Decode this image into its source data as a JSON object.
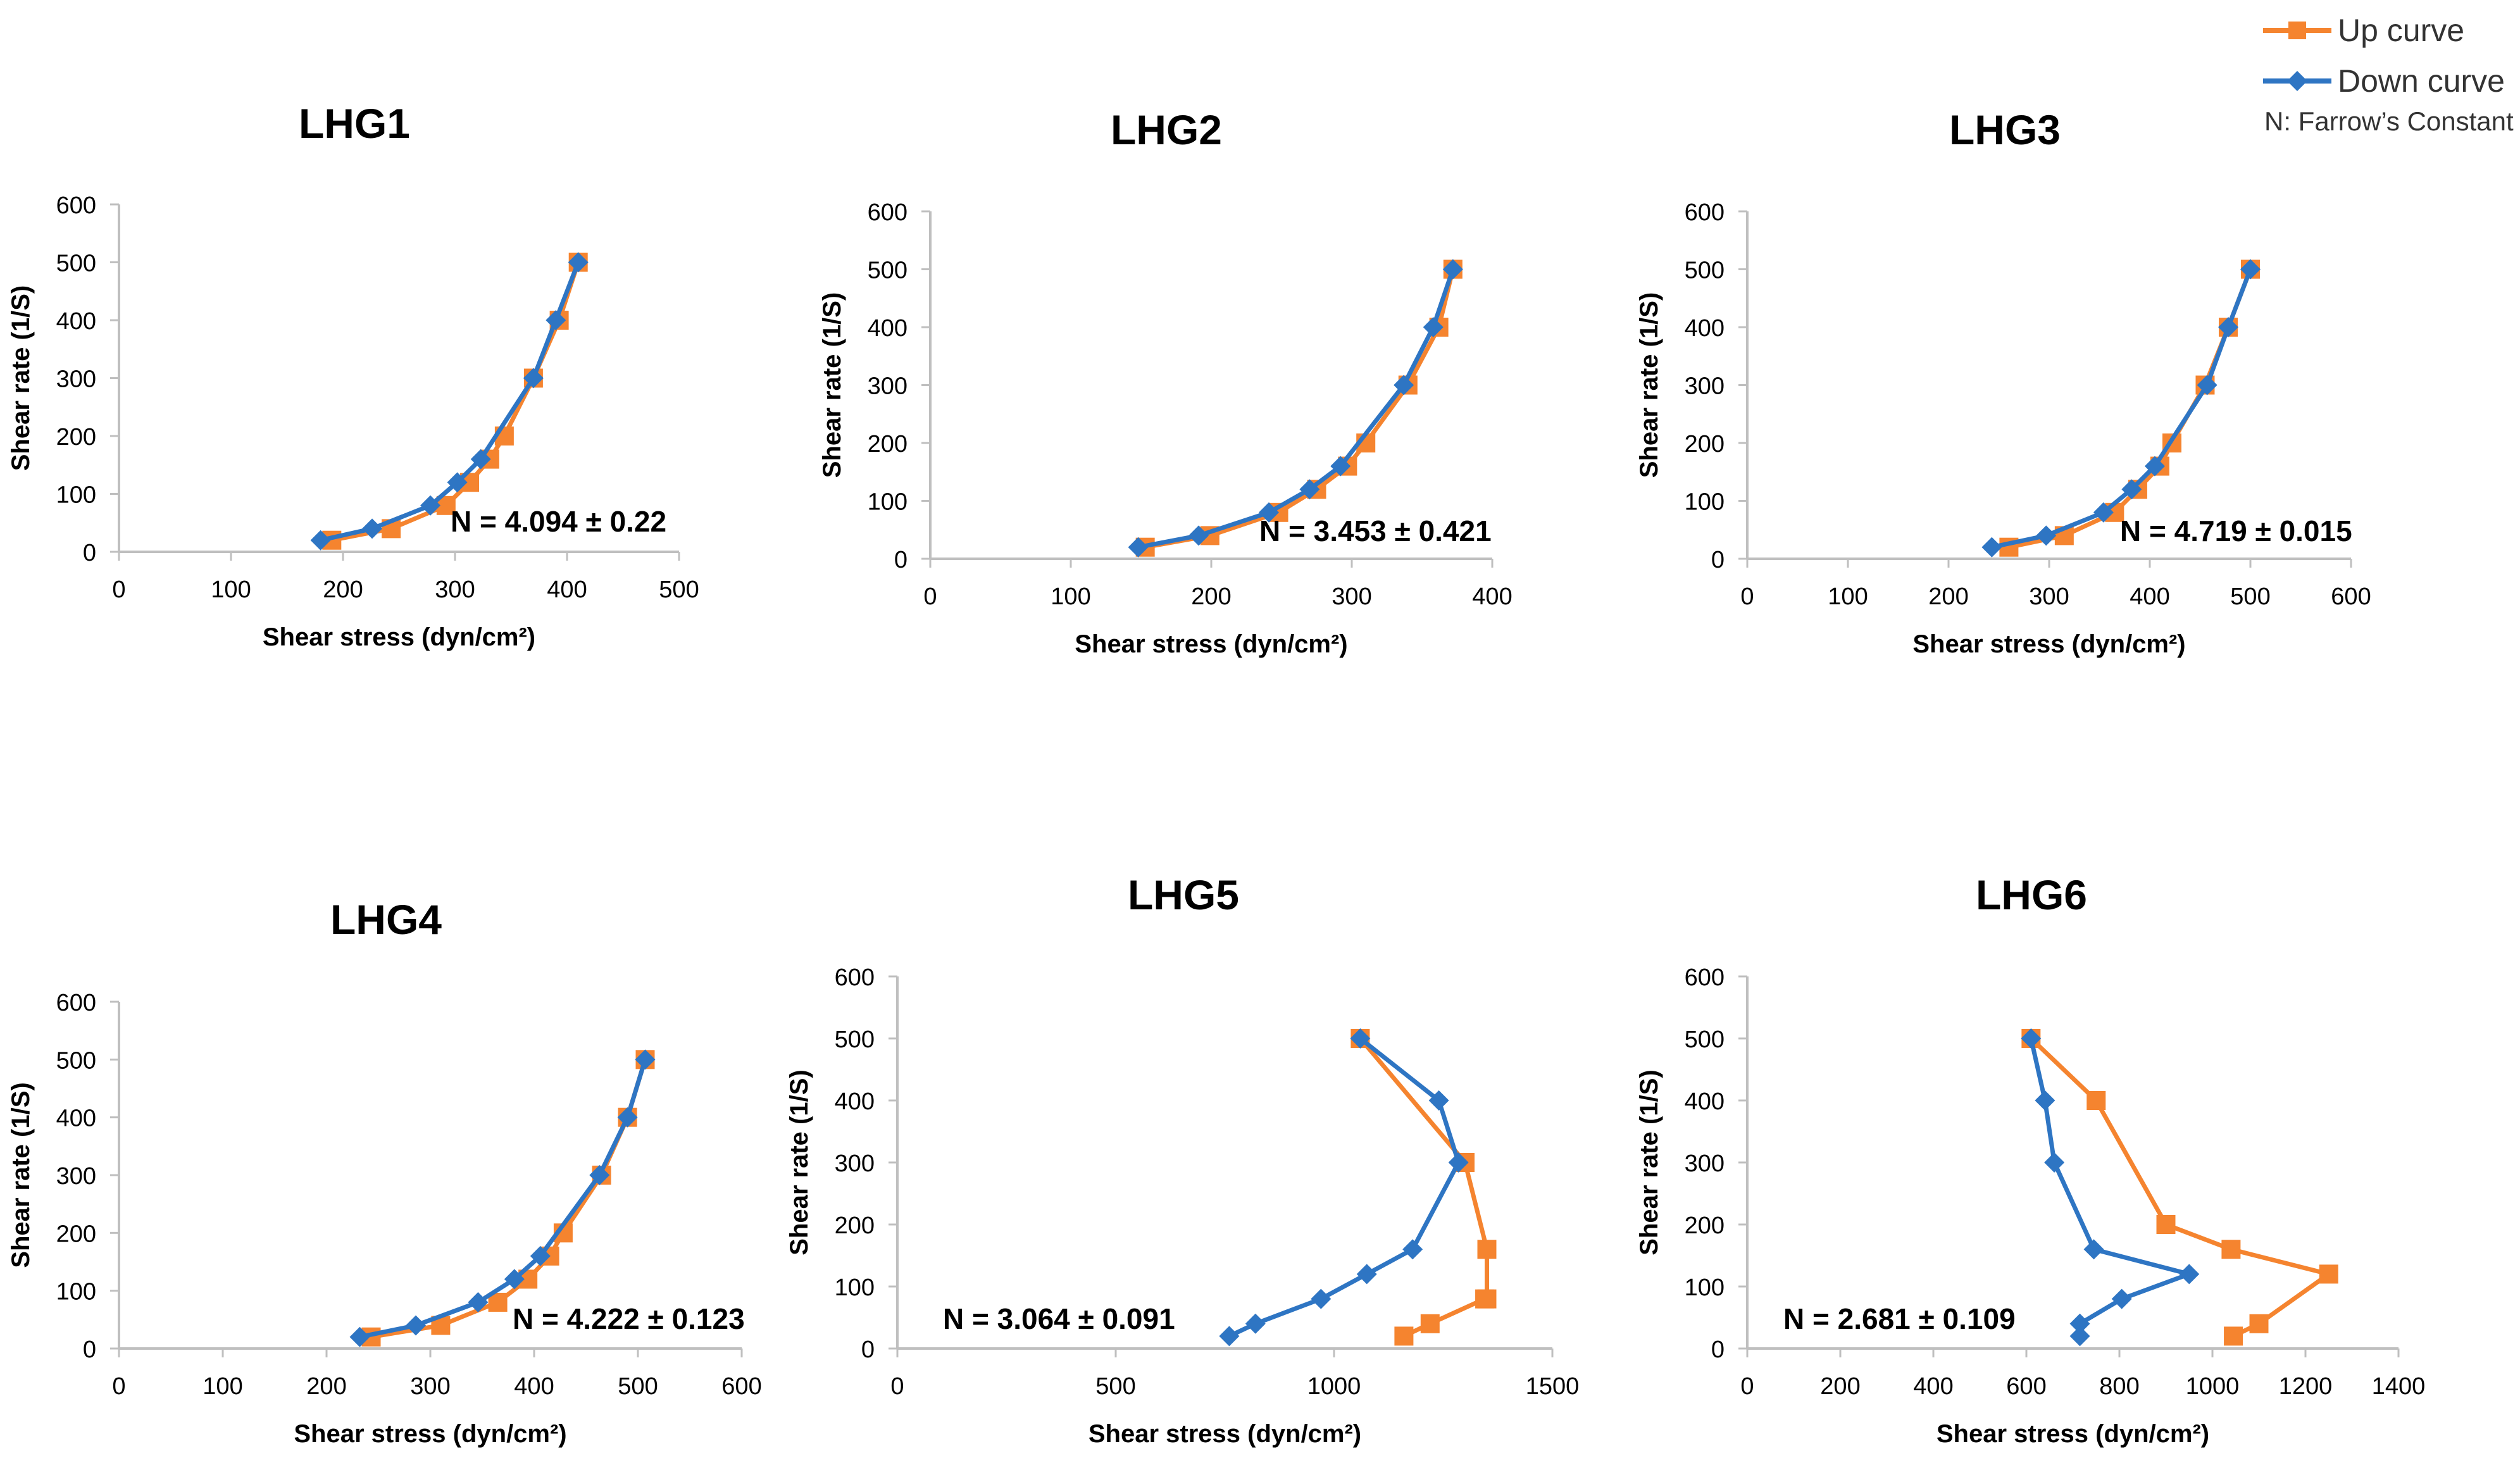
{
  "colors": {
    "up": "#F5842F",
    "down": "#2E75C3",
    "axis": "#BFBFBF",
    "text": "#000000"
  },
  "legend": {
    "up_label": "Up curve",
    "down_label": "Down curve",
    "note": "N: Farrow’s Constant"
  },
  "chart_data": [
    {
      "type": "line",
      "title": "LHG1",
      "xlabel": "Shear stress (dyn/cm²)",
      "ylabel": "Shear rate (1/S)",
      "xlim": [
        0,
        500
      ],
      "xticks": [
        0,
        100,
        200,
        300,
        400,
        500
      ],
      "ylim": [
        0,
        600
      ],
      "yticks": [
        0,
        100,
        200,
        300,
        400,
        500,
        600
      ],
      "annotation": "N = 4.094 ± 0.22",
      "series": [
        {
          "name": "Up curve",
          "x": [
            190,
            243,
            292,
            313,
            331,
            344,
            370,
            393,
            410
          ],
          "y": [
            20,
            40,
            80,
            120,
            160,
            200,
            300,
            400,
            500
          ]
        },
        {
          "name": "Down curve",
          "x": [
            180,
            226,
            278,
            302,
            323,
            370,
            390,
            410
          ],
          "y": [
            20,
            40,
            80,
            120,
            160,
            300,
            400,
            500
          ]
        }
      ]
    },
    {
      "type": "line",
      "title": "LHG2",
      "xlabel": "Shear stress (dyn/cm²)",
      "ylabel": "Shear rate (1/S)",
      "xlim": [
        0,
        400
      ],
      "xticks": [
        0,
        100,
        200,
        300,
        400
      ],
      "ylim": [
        0,
        600
      ],
      "yticks": [
        0,
        100,
        200,
        300,
        400,
        500,
        600
      ],
      "annotation": "N = 3.453 ± 0.421",
      "series": [
        {
          "name": "Up curve",
          "x": [
            153,
            199,
            248,
            275,
            297,
            310,
            340,
            362,
            372
          ],
          "y": [
            20,
            40,
            80,
            120,
            160,
            200,
            300,
            400,
            500
          ]
        },
        {
          "name": "Down curve",
          "x": [
            148,
            191,
            241,
            270,
            292,
            337,
            358,
            372
          ],
          "y": [
            20,
            40,
            80,
            120,
            160,
            300,
            400,
            500
          ]
        }
      ]
    },
    {
      "type": "line",
      "title": "LHG3",
      "xlabel": "Shear stress (dyn/cm²)",
      "ylabel": "Shear rate (1/S)",
      "xlim": [
        0,
        600
      ],
      "xticks": [
        0,
        100,
        200,
        300,
        400,
        500,
        600
      ],
      "ylim": [
        0,
        600
      ],
      "yticks": [
        0,
        100,
        200,
        300,
        400,
        500,
        600
      ],
      "annotation": "N = 4.719 ± 0.015",
      "series": [
        {
          "name": "Up curve",
          "x": [
            260,
            315,
            365,
            388,
            410,
            422,
            455,
            478,
            500
          ],
          "y": [
            20,
            40,
            80,
            120,
            160,
            200,
            300,
            400,
            500
          ]
        },
        {
          "name": "Down curve",
          "x": [
            243,
            297,
            354,
            382,
            405,
            457,
            478,
            500
          ],
          "y": [
            20,
            40,
            80,
            120,
            160,
            300,
            400,
            500
          ]
        }
      ]
    },
    {
      "type": "line",
      "title": "LHG4",
      "xlabel": "Shear stress (dyn/cm²)",
      "ylabel": "Shear rate (1/S)",
      "xlim": [
        0,
        600
      ],
      "xticks": [
        0,
        100,
        200,
        300,
        400,
        500,
        600
      ],
      "ylim": [
        0,
        600
      ],
      "yticks": [
        0,
        100,
        200,
        300,
        400,
        500,
        600
      ],
      "annotation": "N = 4.222 ± 0.123",
      "series": [
        {
          "name": "Up curve",
          "x": [
            243,
            310,
            365,
            394,
            415,
            428,
            465,
            490,
            507
          ],
          "y": [
            20,
            40,
            80,
            120,
            160,
            200,
            300,
            400,
            500
          ]
        },
        {
          "name": "Down curve",
          "x": [
            232,
            286,
            346,
            381,
            406,
            463,
            490,
            507
          ],
          "y": [
            20,
            40,
            80,
            120,
            160,
            300,
            400,
            500
          ]
        }
      ]
    },
    {
      "type": "line",
      "title": "LHG5",
      "xlabel": "Shear stress (dyn/cm²)",
      "ylabel": "Shear rate (1/S)",
      "xlim": [
        0,
        1500
      ],
      "xticks": [
        0,
        500,
        1000,
        1500
      ],
      "ylim": [
        0,
        600
      ],
      "yticks": [
        0,
        100,
        200,
        300,
        400,
        500,
        600
      ],
      "annotation": "N = 3.064 ± 0.091",
      "series": [
        {
          "name": "Up curve",
          "x": [
            1060,
            1300,
            1350,
            1350,
            1345,
            1220,
            1160
          ],
          "y": [
            500,
            300,
            160,
            80,
            80,
            40,
            20
          ]
        },
        {
          "name": "Down curve",
          "x": [
            1060,
            1240,
            1285,
            1180,
            1075,
            970,
            820,
            760
          ],
          "y": [
            500,
            400,
            300,
            160,
            120,
            80,
            40,
            20
          ]
        }
      ]
    },
    {
      "type": "line",
      "title": "LHG6",
      "xlabel": "Shear stress (dyn/cm²)",
      "ylabel": "Shear rate (1/S)",
      "xlim": [
        0,
        1400
      ],
      "xticks": [
        0,
        200,
        400,
        600,
        800,
        1000,
        1200,
        1400
      ],
      "ylim": [
        0,
        600
      ],
      "yticks": [
        0,
        100,
        200,
        300,
        400,
        500,
        600
      ],
      "annotation": "N = 2.681 ± 0.109",
      "series": [
        {
          "name": "Up curve",
          "x": [
            610,
            750,
            900,
            1040,
            1250,
            1100,
            1045
          ],
          "y": [
            500,
            400,
            200,
            160,
            120,
            40,
            20
          ]
        },
        {
          "name": "Down curve",
          "x": [
            610,
            640,
            660,
            745,
            950,
            805,
            715,
            715
          ],
          "y": [
            500,
            400,
            300,
            160,
            120,
            80,
            40,
            20
          ]
        }
      ]
    }
  ]
}
